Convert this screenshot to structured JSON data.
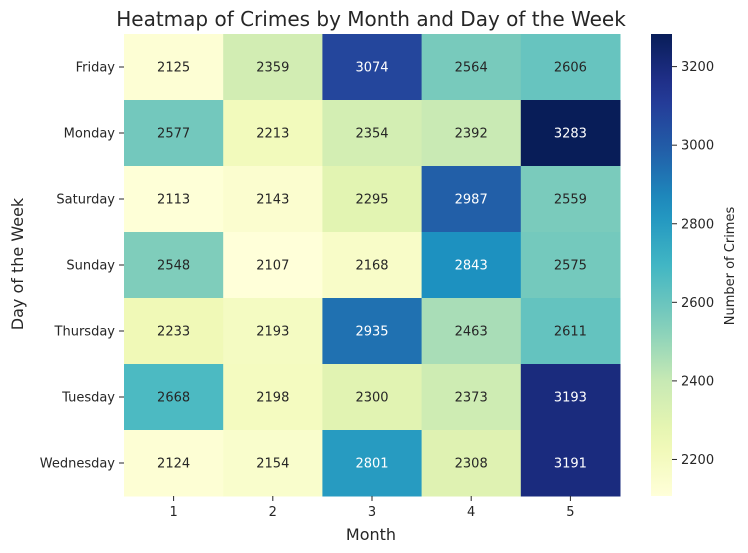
{
  "chart_data": {
    "type": "heatmap",
    "title": "Heatmap of Crimes by Month and Day of the Week",
    "xlabel": "Month",
    "ylabel": "Day of the Week",
    "x": [
      "1",
      "2",
      "3",
      "4",
      "5"
    ],
    "y": [
      "Friday",
      "Monday",
      "Saturday",
      "Sunday",
      "Thursday",
      "Tuesday",
      "Wednesday"
    ],
    "values": [
      [
        2125,
        2359,
        3074,
        2564,
        2606
      ],
      [
        2577,
        2213,
        2354,
        2392,
        3283
      ],
      [
        2113,
        2143,
        2295,
        2987,
        2559
      ],
      [
        2548,
        2107,
        2168,
        2843,
        2575
      ],
      [
        2233,
        2193,
        2935,
        2463,
        2611
      ],
      [
        2668,
        2198,
        2300,
        2373,
        3193
      ],
      [
        2124,
        2154,
        2801,
        2308,
        3191
      ]
    ],
    "colorbar": {
      "label": "Number of Crimes",
      "ticks": [
        2200,
        2400,
        2600,
        2800,
        3000,
        3200
      ],
      "range": [
        2107,
        3283
      ]
    },
    "colormap": "YlGnBu",
    "annotations": true,
    "grid": false
  }
}
